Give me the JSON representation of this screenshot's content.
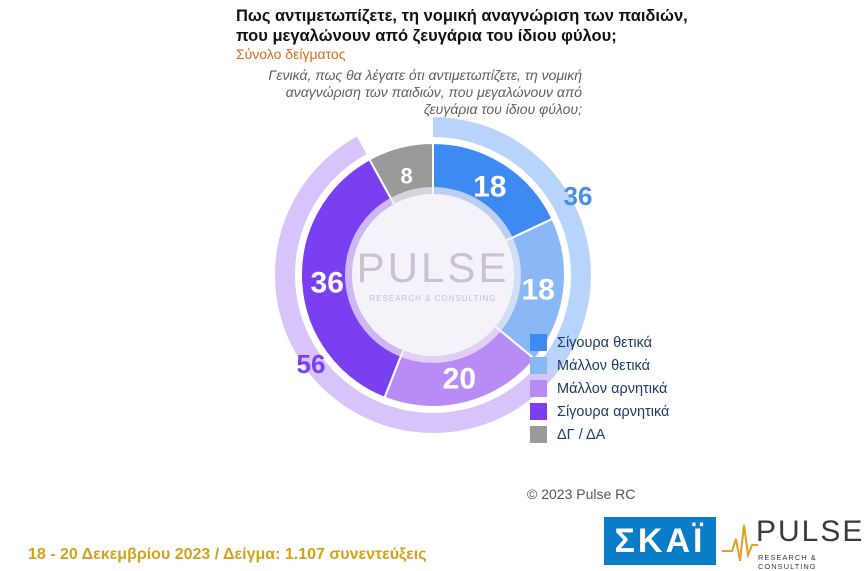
{
  "header": {
    "title": "Πως αντιμετωπίζετε, τη νομική αναγνώριση των παιδιών, που μεγαλώνουν από ζευγάρια του ίδιου φύλου;",
    "subtitle": "Σύνολο δείγματος",
    "question": "Γενικά, πως θα λέγατε ότι αντιμετωπίζετε, τη νομική αναγνώριση των παιδιών, που μεγαλώνουν από ζευγάρια του ίδιου φύλου;"
  },
  "chart_data": {
    "type": "pie",
    "variant": "donut",
    "categories": [
      "Σίγουρα θετικά",
      "Μάλλον θετικά",
      "Μάλλον αρνητικά",
      "Σίγουρα αρνητικά",
      "ΔΓ / ΔΑ"
    ],
    "values": [
      18,
      18,
      20,
      36,
      8
    ],
    "colors": [
      "#3d8bf2",
      "#8ab8f7",
      "#b98cf5",
      "#7a3ff0",
      "#9a9a9a"
    ],
    "outer_groups": [
      {
        "label": "36",
        "value": 36,
        "categories": [
          "Σίγουρα θετικά",
          "Μάλλον θετικά"
        ],
        "color": "#b8d4fb",
        "label_color": "#4a8fe6"
      },
      {
        "label": "56",
        "value": 56,
        "categories": [
          "Μάλλον αρνητικά",
          "Σίγουρα αρνητικά"
        ],
        "color": "#d7c4fa",
        "label_color": "#7a3ff0"
      }
    ],
    "legend_position": "bottom-right"
  },
  "watermark": {
    "word": "PULSE",
    "sub": "RESEARCH & CONSULTING"
  },
  "copyright": "© 2023 Pulse RC",
  "footer": "18 - 20 Δεκεμβρίου 2023 / Δείγμα: 1.107 συνεντεύξεις",
  "logos": {
    "skai": "ΣΚΑΪ",
    "pulse": "PULSE",
    "pulse_sub": "RESEARCH & CONSULTING"
  }
}
